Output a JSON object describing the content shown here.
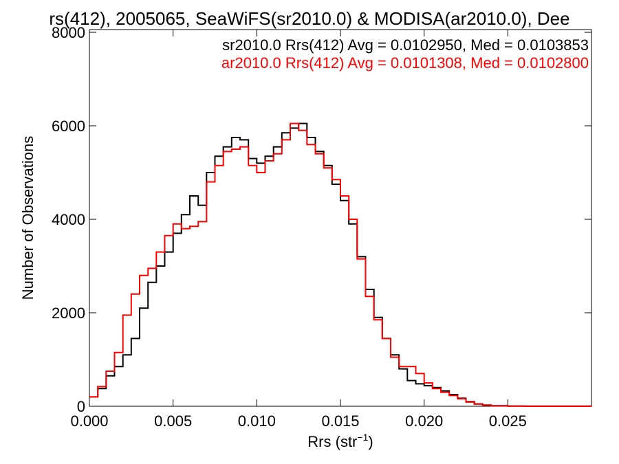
{
  "chart_data": {
    "type": "line",
    "title": "rs(412), 2005065, SeaWiFS(sr2010.0) & MODISA(ar2010.0), Dee",
    "xlabel": "Rrs (str",
    "xlabel_sup": "−1",
    "xlabel_end": ")",
    "ylabel": "Number of Observations",
    "xlim": [
      0,
      0.03
    ],
    "ylim": [
      0,
      8000
    ],
    "x_ticks": [
      0.0,
      0.005,
      0.01,
      0.015,
      0.02,
      0.025
    ],
    "x_tick_labels": [
      "0.000",
      "0.005",
      "0.010",
      "0.015",
      "0.020",
      "0.025"
    ],
    "y_ticks": [
      0,
      2000,
      4000,
      6000,
      8000
    ],
    "y_tick_labels": [
      "0",
      "2000",
      "4000",
      "6000",
      "8000"
    ],
    "grid": false,
    "legend_position": "top-right",
    "series": [
      {
        "name": "sr2010.0 Rrs(412) Avg = 0.0102950, Med = 0.0103853",
        "color": "#000000",
        "points": [
          [
            0.0,
            200
          ],
          [
            0.0005,
            380
          ],
          [
            0.001,
            650
          ],
          [
            0.0015,
            850
          ],
          [
            0.002,
            1100
          ],
          [
            0.0025,
            1450
          ],
          [
            0.003,
            2100
          ],
          [
            0.0035,
            2650
          ],
          [
            0.004,
            3000
          ],
          [
            0.0045,
            3300
          ],
          [
            0.005,
            3700
          ],
          [
            0.0055,
            4100
          ],
          [
            0.006,
            4500
          ],
          [
            0.0065,
            4300
          ],
          [
            0.007,
            5000
          ],
          [
            0.0075,
            5350
          ],
          [
            0.008,
            5550
          ],
          [
            0.0085,
            5750
          ],
          [
            0.009,
            5700
          ],
          [
            0.0095,
            5300
          ],
          [
            0.01,
            5200
          ],
          [
            0.0105,
            5350
          ],
          [
            0.011,
            5550
          ],
          [
            0.0115,
            5850
          ],
          [
            0.012,
            5950
          ],
          [
            0.0125,
            6050
          ],
          [
            0.013,
            5750
          ],
          [
            0.0135,
            5450
          ],
          [
            0.014,
            5150
          ],
          [
            0.0145,
            4750
          ],
          [
            0.015,
            4400
          ],
          [
            0.0155,
            3900
          ],
          [
            0.016,
            3200
          ],
          [
            0.0165,
            2500
          ],
          [
            0.017,
            1900
          ],
          [
            0.0175,
            1450
          ],
          [
            0.018,
            1100
          ],
          [
            0.0185,
            800
          ],
          [
            0.019,
            550
          ],
          [
            0.0195,
            480
          ],
          [
            0.02,
            440
          ],
          [
            0.0205,
            400
          ],
          [
            0.021,
            330
          ],
          [
            0.0215,
            250
          ],
          [
            0.022,
            170
          ],
          [
            0.0225,
            100
          ],
          [
            0.023,
            50
          ],
          [
            0.0235,
            25
          ],
          [
            0.024,
            12
          ],
          [
            0.025,
            5
          ],
          [
            0.026,
            2
          ],
          [
            0.03,
            0
          ]
        ]
      },
      {
        "name": "ar2010.0 Rrs(412) Avg = 0.0101308, Med = 0.0102800",
        "color": "#ff0000",
        "points": [
          [
            0.0,
            200
          ],
          [
            0.0005,
            420
          ],
          [
            0.001,
            750
          ],
          [
            0.0015,
            1150
          ],
          [
            0.002,
            1950
          ],
          [
            0.0025,
            2400
          ],
          [
            0.003,
            2800
          ],
          [
            0.0035,
            2950
          ],
          [
            0.004,
            3300
          ],
          [
            0.0045,
            3650
          ],
          [
            0.005,
            3900
          ],
          [
            0.0055,
            3800
          ],
          [
            0.006,
            3850
          ],
          [
            0.0065,
            3950
          ],
          [
            0.007,
            4800
          ],
          [
            0.0075,
            5150
          ],
          [
            0.008,
            5450
          ],
          [
            0.0085,
            5500
          ],
          [
            0.009,
            5550
          ],
          [
            0.0095,
            5150
          ],
          [
            0.01,
            5000
          ],
          [
            0.0105,
            5250
          ],
          [
            0.011,
            5400
          ],
          [
            0.0115,
            5700
          ],
          [
            0.012,
            6050
          ],
          [
            0.0125,
            5900
          ],
          [
            0.013,
            5600
          ],
          [
            0.0135,
            5400
          ],
          [
            0.014,
            5100
          ],
          [
            0.0145,
            4850
          ],
          [
            0.015,
            4500
          ],
          [
            0.0155,
            4000
          ],
          [
            0.016,
            3150
          ],
          [
            0.0165,
            2350
          ],
          [
            0.017,
            1850
          ],
          [
            0.0175,
            1450
          ],
          [
            0.018,
            1050
          ],
          [
            0.0185,
            850
          ],
          [
            0.019,
            850
          ],
          [
            0.0195,
            700
          ],
          [
            0.02,
            500
          ],
          [
            0.0205,
            380
          ],
          [
            0.021,
            300
          ],
          [
            0.0215,
            230
          ],
          [
            0.022,
            160
          ],
          [
            0.0225,
            90
          ],
          [
            0.023,
            45
          ],
          [
            0.0235,
            22
          ],
          [
            0.024,
            10
          ],
          [
            0.025,
            5
          ],
          [
            0.026,
            2
          ],
          [
            0.03,
            0
          ]
        ]
      }
    ]
  }
}
